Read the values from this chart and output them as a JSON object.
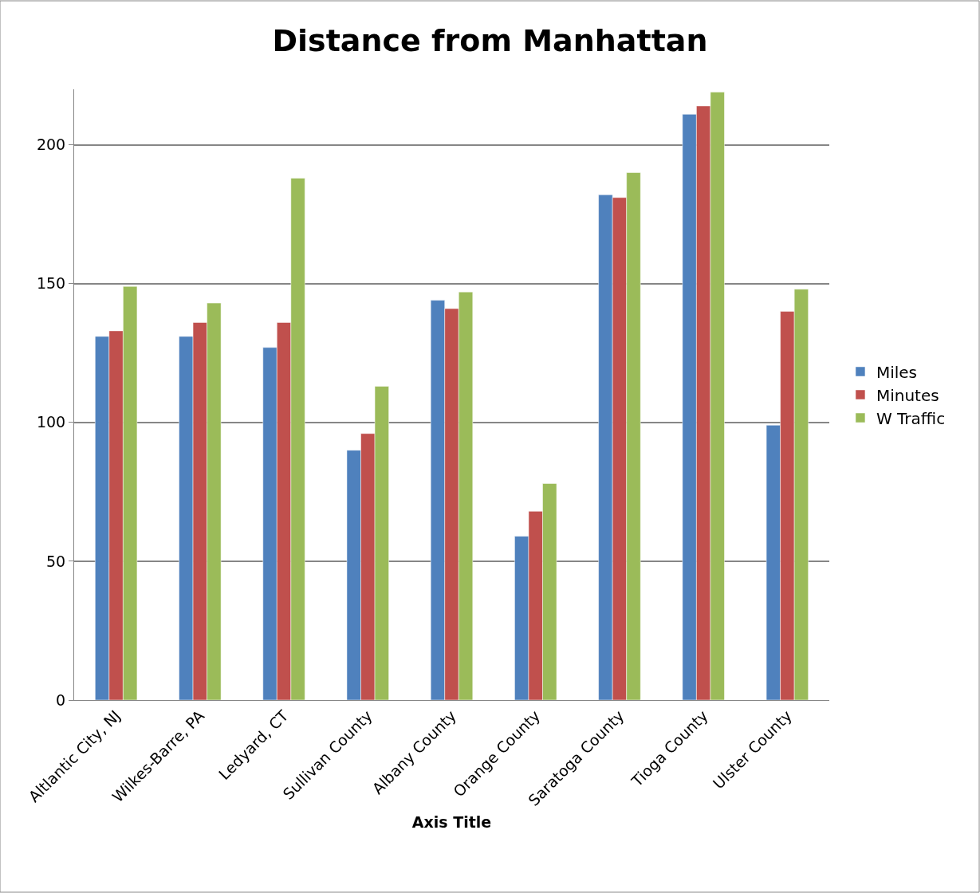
{
  "chart_data": {
    "type": "bar",
    "title": "Distance from Manhattan",
    "xlabel": "Axis Title",
    "categories": [
      "Altlantic City, NJ",
      "Wilkes-Barre, PA",
      "Ledyard, CT",
      "Sullivan County",
      "Albany County",
      "Orange County",
      "Saratoga County",
      "Tioga County",
      "Ulster County"
    ],
    "series": [
      {
        "name": "Miles",
        "color": "#4f81bd",
        "values": [
          131,
          131,
          127,
          90,
          144,
          59,
          182,
          211,
          99
        ]
      },
      {
        "name": "Minutes",
        "color": "#c0504d",
        "values": [
          133,
          136,
          136,
          96,
          141,
          68,
          181,
          214,
          140
        ]
      },
      {
        "name": "W Traffic",
        "color": "#9bbb59",
        "values": [
          149,
          143,
          188,
          113,
          147,
          78,
          190,
          219,
          148
        ]
      }
    ],
    "ylim": [
      0,
      220
    ],
    "yticks": [
      0,
      50,
      100,
      150,
      200
    ],
    "grid": "y",
    "legend": "right"
  }
}
